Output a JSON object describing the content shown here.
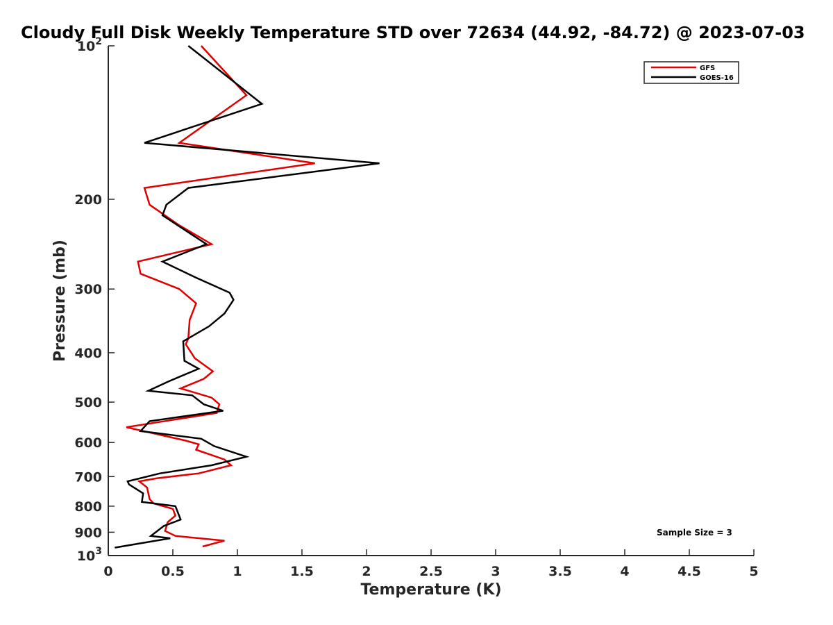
{
  "chart_data": {
    "type": "line",
    "title": "Cloudy Full Disk Weekly Temperature STD over 72634 (44.92, -84.72) @ 2023-07-03",
    "xlabel": "Temperature (K)",
    "ylabel": "Pressure (mb)",
    "xlim": [
      0,
      5
    ],
    "ylim": [
      100,
      1000
    ],
    "y_scale": "log",
    "y_reversed": true,
    "grid": false,
    "legend_position": "top-right",
    "x_ticks": [
      "0",
      "0.5",
      "1",
      "1.5",
      "2",
      "2.5",
      "3",
      "3.5",
      "4",
      "4.5",
      "5"
    ],
    "y_ticks": [
      {
        "value": 100,
        "base": "10",
        "exp": "2"
      },
      {
        "value": 200,
        "label": "200"
      },
      {
        "value": 300,
        "label": "300"
      },
      {
        "value": 400,
        "label": "400"
      },
      {
        "value": 500,
        "label": "500"
      },
      {
        "value": 600,
        "label": "600"
      },
      {
        "value": 700,
        "label": "700"
      },
      {
        "value": 800,
        "label": "800"
      },
      {
        "value": 900,
        "label": "900"
      },
      {
        "value": 1000,
        "base": "10",
        "exp": "3"
      }
    ],
    "annotation": "Sample Size = 3",
    "series": [
      {
        "name": "GFS",
        "color": "#e00000",
        "points": [
          [
            0.72,
            100
          ],
          [
            1.07,
            125
          ],
          [
            0.55,
            155
          ],
          [
            1.6,
            170
          ],
          [
            0.28,
            190
          ],
          [
            0.32,
            205
          ],
          [
            0.55,
            225
          ],
          [
            0.8,
            245
          ],
          [
            0.23,
            265
          ],
          [
            0.25,
            280
          ],
          [
            0.55,
            300
          ],
          [
            0.68,
            320
          ],
          [
            0.63,
            345
          ],
          [
            0.62,
            375
          ],
          [
            0.6,
            385
          ],
          [
            0.67,
            410
          ],
          [
            0.81,
            435
          ],
          [
            0.74,
            450
          ],
          [
            0.56,
            470
          ],
          [
            0.8,
            490
          ],
          [
            0.86,
            505
          ],
          [
            0.84,
            525
          ],
          [
            0.14,
            560
          ],
          [
            0.6,
            595
          ],
          [
            0.7,
            605
          ],
          [
            0.68,
            620
          ],
          [
            0.9,
            648
          ],
          [
            0.95,
            665
          ],
          [
            0.7,
            690
          ],
          [
            0.38,
            705
          ],
          [
            0.24,
            715
          ],
          [
            0.3,
            735
          ],
          [
            0.32,
            775
          ],
          [
            0.35,
            790
          ],
          [
            0.5,
            810
          ],
          [
            0.52,
            835
          ],
          [
            0.46,
            860
          ],
          [
            0.44,
            895
          ],
          [
            0.52,
            915
          ],
          [
            0.9,
            935
          ],
          [
            0.73,
            960
          ]
        ]
      },
      {
        "name": "GOES-16",
        "color": "#000000",
        "points": [
          [
            0.62,
            100
          ],
          [
            1.19,
            130
          ],
          [
            0.28,
            155
          ],
          [
            2.1,
            170
          ],
          [
            0.62,
            190
          ],
          [
            0.45,
            205
          ],
          [
            0.42,
            215
          ],
          [
            0.76,
            245
          ],
          [
            0.42,
            265
          ],
          [
            0.68,
            285
          ],
          [
            0.94,
            305
          ],
          [
            0.97,
            315
          ],
          [
            0.9,
            335
          ],
          [
            0.78,
            355
          ],
          [
            0.58,
            380
          ],
          [
            0.59,
            415
          ],
          [
            0.7,
            430
          ],
          [
            0.47,
            455
          ],
          [
            0.31,
            475
          ],
          [
            0.65,
            485
          ],
          [
            0.74,
            505
          ],
          [
            0.89,
            520
          ],
          [
            0.32,
            545
          ],
          [
            0.25,
            570
          ],
          [
            0.72,
            590
          ],
          [
            0.82,
            610
          ],
          [
            1.07,
            640
          ],
          [
            0.8,
            665
          ],
          [
            0.4,
            690
          ],
          [
            0.15,
            715
          ],
          [
            0.16,
            725
          ],
          [
            0.27,
            755
          ],
          [
            0.26,
            785
          ],
          [
            0.52,
            800
          ],
          [
            0.56,
            850
          ],
          [
            0.43,
            875
          ],
          [
            0.33,
            915
          ],
          [
            0.48,
            925
          ],
          [
            0.05,
            965
          ]
        ]
      }
    ]
  }
}
